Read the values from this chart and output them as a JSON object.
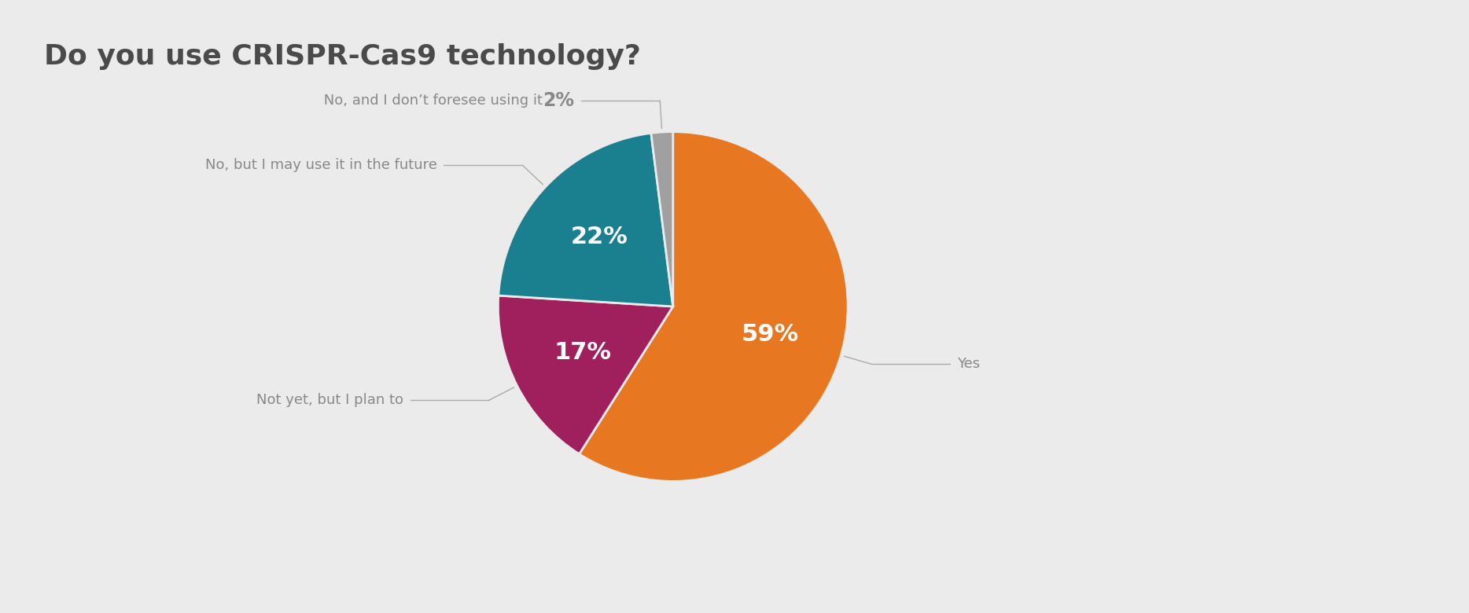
{
  "title": "Do you use CRISPR-Cas9 technology?",
  "title_fontsize": 26,
  "title_color": "#4a4a4a",
  "background_color": "#ebebeb",
  "slices": [
    59,
    17,
    22,
    2
  ],
  "colors": [
    "#e87722",
    "#a0205e",
    "#1a7f8e",
    "#a0a0a0"
  ],
  "slice_labels_inside": [
    "59%",
    "17%",
    "22%",
    ""
  ],
  "outside_labels": [
    "Yes",
    "Not yet, but I plan to",
    "No, but I may use it in the future",
    "No, and I don’t foresee using it"
  ],
  "outside_pct": [
    "",
    "",
    "",
    "2%"
  ],
  "inside_label_fontsize": 22,
  "outside_label_fontsize": 13,
  "pct_outside_fontsize": 17,
  "label_color": "#888888",
  "startangle": 90,
  "counterclock": false
}
